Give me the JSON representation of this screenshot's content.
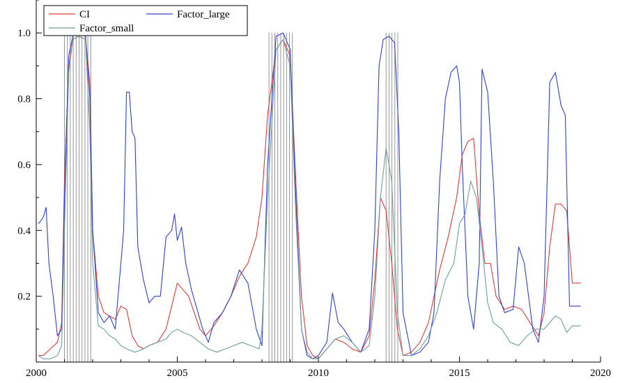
{
  "chart_data": {
    "type": "line",
    "title": "",
    "xlabel": "",
    "ylabel": "",
    "xlim": [
      2000,
      2020
    ],
    "ylim": [
      0.0,
      1.1
    ],
    "x_ticks": [
      2000,
      2005,
      2010,
      2015,
      2020
    ],
    "y_ticks": [
      0.2,
      0.4,
      0.6,
      0.8,
      1.0
    ],
    "x_tick_labels": [
      "2000",
      "2005",
      "2010",
      "2015",
      "2020"
    ],
    "y_tick_labels": [
      "0.2",
      "0.4",
      "0.6",
      "0.8",
      "1.0"
    ],
    "grid": false,
    "legend": {
      "position": "top-left",
      "entries": [
        {
          "label": "CI",
          "color": "#e03a3a"
        },
        {
          "label": "Factor_large",
          "color": "#2f3fd8"
        },
        {
          "label": "Factor_small",
          "color": "#6f9e9a"
        }
      ]
    },
    "shaded_periods": [
      {
        "start": 2001.0,
        "end": 2002.0
      },
      {
        "start": 2008.25,
        "end": 2009.17
      },
      {
        "start": 2012.4,
        "end": 2012.9
      }
    ],
    "series": [
      {
        "name": "CI",
        "color": "#e03a3a",
        "x": [
          2000.08,
          2000.25,
          2000.5,
          2000.75,
          2000.9,
          2001.0,
          2001.15,
          2001.3,
          2001.5,
          2001.75,
          2001.9,
          2002.0,
          2002.2,
          2002.4,
          2002.6,
          2002.8,
          2003.0,
          2003.2,
          2003.4,
          2003.6,
          2003.8,
          2004.0,
          2004.3,
          2004.6,
          2004.8,
          2005.0,
          2005.2,
          2005.4,
          2005.6,
          2005.8,
          2006.0,
          2006.3,
          2006.6,
          2006.9,
          2007.2,
          2007.5,
          2007.8,
          2008.0,
          2008.2,
          2008.5,
          2008.75,
          2009.0,
          2009.2,
          2009.4,
          2009.6,
          2009.8,
          2010.0,
          2010.3,
          2010.6,
          2010.9,
          2011.2,
          2011.5,
          2011.8,
          2012.0,
          2012.2,
          2012.4,
          2012.6,
          2012.8,
          2013.0,
          2013.3,
          2013.6,
          2013.9,
          2014.1,
          2014.3,
          2014.6,
          2014.9,
          2015.1,
          2015.3,
          2015.5,
          2015.7,
          2015.9,
          2016.1,
          2016.3,
          2016.6,
          2016.9,
          2017.2,
          2017.5,
          2017.8,
          2018.0,
          2018.2,
          2018.4,
          2018.6,
          2018.8,
          2019.0,
          2019.3
        ],
        "values": [
          0.02,
          0.02,
          0.04,
          0.06,
          0.12,
          0.55,
          0.9,
          0.98,
          0.99,
          0.98,
          0.85,
          0.4,
          0.2,
          0.15,
          0.14,
          0.13,
          0.17,
          0.16,
          0.08,
          0.05,
          0.04,
          0.05,
          0.06,
          0.1,
          0.17,
          0.24,
          0.22,
          0.2,
          0.15,
          0.1,
          0.08,
          0.11,
          0.15,
          0.2,
          0.26,
          0.3,
          0.38,
          0.5,
          0.75,
          0.95,
          0.98,
          0.93,
          0.55,
          0.2,
          0.05,
          0.02,
          0.01,
          0.04,
          0.07,
          0.06,
          0.04,
          0.03,
          0.08,
          0.25,
          0.5,
          0.46,
          0.3,
          0.1,
          0.02,
          0.03,
          0.06,
          0.12,
          0.2,
          0.28,
          0.38,
          0.5,
          0.63,
          0.67,
          0.68,
          0.45,
          0.3,
          0.3,
          0.2,
          0.16,
          0.17,
          0.16,
          0.12,
          0.08,
          0.15,
          0.35,
          0.48,
          0.48,
          0.46,
          0.24,
          0.24
        ]
      },
      {
        "name": "Factor_large",
        "color": "#2f3fd8",
        "x": [
          2000.08,
          2000.25,
          2000.35,
          2000.45,
          2000.6,
          2000.75,
          2000.9,
          2001.0,
          2001.15,
          2001.3,
          2001.5,
          2001.75,
          2001.9,
          2002.0,
          2002.2,
          2002.4,
          2002.6,
          2002.8,
          2003.0,
          2003.1,
          2003.2,
          2003.3,
          2003.4,
          2003.5,
          2003.6,
          2003.8,
          2004.0,
          2004.2,
          2004.4,
          2004.6,
          2004.8,
          2004.9,
          2005.0,
          2005.15,
          2005.3,
          2005.5,
          2005.7,
          2005.9,
          2006.1,
          2006.3,
          2006.6,
          2006.9,
          2007.2,
          2007.5,
          2007.8,
          2008.0,
          2008.2,
          2008.5,
          2008.75,
          2009.0,
          2009.2,
          2009.4,
          2009.6,
          2009.8,
          2010.0,
          2010.3,
          2010.5,
          2010.7,
          2010.9,
          2011.2,
          2011.5,
          2011.8,
          2012.0,
          2012.15,
          2012.3,
          2012.5,
          2012.7,
          2012.85,
          2013.0,
          2013.3,
          2013.6,
          2013.9,
          2014.1,
          2014.3,
          2014.5,
          2014.7,
          2014.9,
          2015.0,
          2015.1,
          2015.3,
          2015.5,
          2015.7,
          2015.8,
          2016.0,
          2016.2,
          2016.4,
          2016.6,
          2016.9,
          2017.1,
          2017.3,
          2017.6,
          2017.8,
          2018.0,
          2018.2,
          2018.4,
          2018.6,
          2018.75,
          2018.9,
          2019.3
        ],
        "values": [
          0.42,
          0.44,
          0.47,
          0.3,
          0.2,
          0.08,
          0.1,
          0.5,
          0.93,
          0.99,
          1.0,
          0.99,
          0.8,
          0.4,
          0.15,
          0.12,
          0.14,
          0.1,
          0.3,
          0.4,
          0.82,
          0.82,
          0.7,
          0.68,
          0.35,
          0.25,
          0.18,
          0.2,
          0.2,
          0.38,
          0.4,
          0.45,
          0.37,
          0.41,
          0.3,
          0.22,
          0.16,
          0.1,
          0.06,
          0.12,
          0.15,
          0.2,
          0.28,
          0.24,
          0.1,
          0.05,
          0.6,
          0.99,
          1.0,
          0.95,
          0.5,
          0.1,
          0.02,
          0.01,
          0.02,
          0.06,
          0.21,
          0.12,
          0.1,
          0.06,
          0.03,
          0.1,
          0.4,
          0.9,
          0.98,
          0.99,
          0.97,
          0.7,
          0.15,
          0.02,
          0.03,
          0.06,
          0.15,
          0.55,
          0.8,
          0.88,
          0.9,
          0.85,
          0.6,
          0.2,
          0.1,
          0.3,
          0.89,
          0.82,
          0.55,
          0.2,
          0.15,
          0.16,
          0.35,
          0.3,
          0.1,
          0.06,
          0.2,
          0.85,
          0.88,
          0.78,
          0.75,
          0.17,
          0.17
        ]
      },
      {
        "name": "Factor_small",
        "color": "#6f9e9a",
        "x": [
          2000.08,
          2000.25,
          2000.5,
          2000.75,
          2000.9,
          2001.0,
          2001.15,
          2001.3,
          2001.5,
          2001.75,
          2001.9,
          2002.0,
          2002.2,
          2002.4,
          2002.6,
          2002.8,
          2003.0,
          2003.2,
          2003.5,
          2003.8,
          2004.0,
          2004.3,
          2004.6,
          2004.8,
          2005.0,
          2005.2,
          2005.5,
          2005.8,
          2006.1,
          2006.4,
          2006.7,
          2007.0,
          2007.3,
          2007.6,
          2007.9,
          2008.0,
          2008.2,
          2008.5,
          2008.75,
          2009.0,
          2009.2,
          2009.4,
          2009.6,
          2009.8,
          2010.0,
          2010.3,
          2010.6,
          2010.9,
          2011.2,
          2011.5,
          2011.8,
          2012.0,
          2012.2,
          2012.4,
          2012.6,
          2012.8,
          2013.0,
          2013.3,
          2013.6,
          2013.9,
          2014.2,
          2014.5,
          2014.8,
          2015.0,
          2015.2,
          2015.4,
          2015.6,
          2015.8,
          2016.0,
          2016.2,
          2016.5,
          2016.8,
          2017.1,
          2017.4,
          2017.7,
          2018.0,
          2018.2,
          2018.4,
          2018.6,
          2018.8,
          2019.0,
          2019.3
        ],
        "values": [
          0.02,
          0.01,
          0.01,
          0.02,
          0.05,
          0.4,
          0.88,
          0.98,
          0.99,
          0.98,
          0.7,
          0.3,
          0.11,
          0.1,
          0.08,
          0.07,
          0.05,
          0.04,
          0.03,
          0.04,
          0.05,
          0.06,
          0.07,
          0.09,
          0.1,
          0.09,
          0.08,
          0.06,
          0.04,
          0.03,
          0.04,
          0.05,
          0.06,
          0.05,
          0.04,
          0.1,
          0.5,
          0.95,
          0.98,
          0.9,
          0.45,
          0.1,
          0.03,
          0.01,
          0.01,
          0.04,
          0.07,
          0.08,
          0.06,
          0.03,
          0.05,
          0.2,
          0.5,
          0.65,
          0.55,
          0.15,
          0.02,
          0.02,
          0.04,
          0.08,
          0.15,
          0.25,
          0.3,
          0.42,
          0.45,
          0.55,
          0.5,
          0.35,
          0.18,
          0.12,
          0.1,
          0.06,
          0.05,
          0.08,
          0.1,
          0.1,
          0.12,
          0.14,
          0.13,
          0.09,
          0.11,
          0.11
        ]
      }
    ]
  }
}
